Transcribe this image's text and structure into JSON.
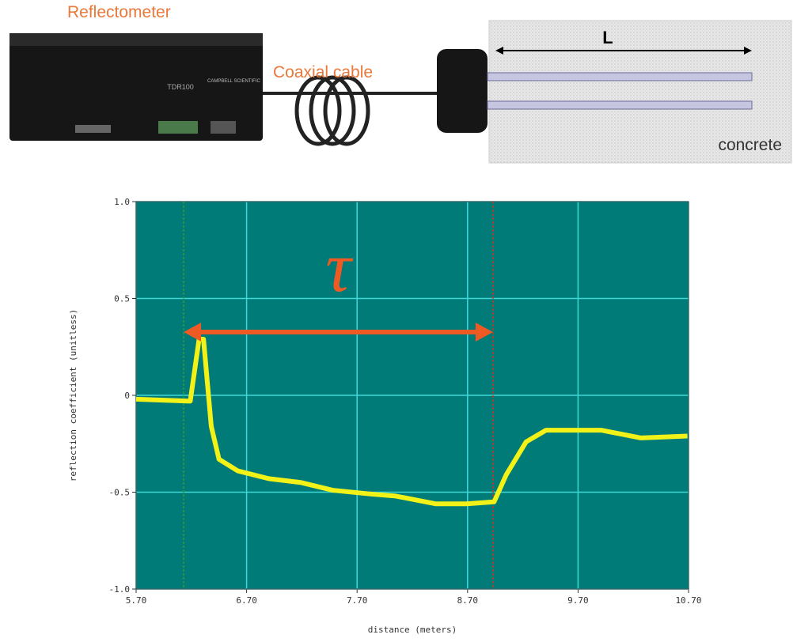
{
  "diagram": {
    "device_label": "Reflectometer",
    "device_model": "TDR100",
    "device_brand": "CAMPBELL SCIENTIFIC",
    "cable_label": "Coaxial cable",
    "length_label": "L",
    "medium_label": "concrete"
  },
  "chart_data": {
    "type": "line",
    "x_label": "distance (meters)",
    "y_label": "reflection coefficient (unitless)",
    "annotation": "τ",
    "x": [
      5.7,
      6.19,
      6.27,
      6.31,
      6.38,
      6.45,
      6.62,
      6.9,
      7.19,
      7.48,
      7.83,
      8.05,
      8.41,
      8.69,
      8.94,
      9.05,
      9.23,
      9.41,
      9.91,
      10.27,
      10.69
    ],
    "values": [
      -0.02,
      -0.03,
      0.29,
      0.29,
      -0.16,
      -0.33,
      -0.39,
      -0.43,
      -0.45,
      -0.49,
      -0.51,
      -0.52,
      -0.56,
      -0.56,
      -0.55,
      -0.41,
      -0.24,
      -0.18,
      -0.18,
      -0.22,
      -0.21
    ],
    "color": "#f2f218",
    "markers": [
      {
        "x": 6.13,
        "color": "#2e9e3c"
      },
      {
        "x": 8.93,
        "color": "#c0392b"
      }
    ],
    "arrow_color": "#ee5a24",
    "xlim": [
      5.7,
      10.7
    ],
    "xticks": [
      {
        "value": 5.7,
        "label": "5.70"
      },
      {
        "value": 6.7,
        "label": "6.70"
      },
      {
        "value": 7.7,
        "label": "7.70"
      },
      {
        "value": 8.7,
        "label": "8.70"
      },
      {
        "value": 9.7,
        "label": "9.70"
      },
      {
        "value": 10.7,
        "label": "10.70"
      }
    ],
    "ylim": [
      -1,
      1
    ],
    "yticks": [
      {
        "value": 1,
        "label": "1.0"
      },
      0.5,
      0,
      -0.5,
      {
        "value": -1,
        "label": "-1.0"
      }
    ],
    "grid": true
  }
}
